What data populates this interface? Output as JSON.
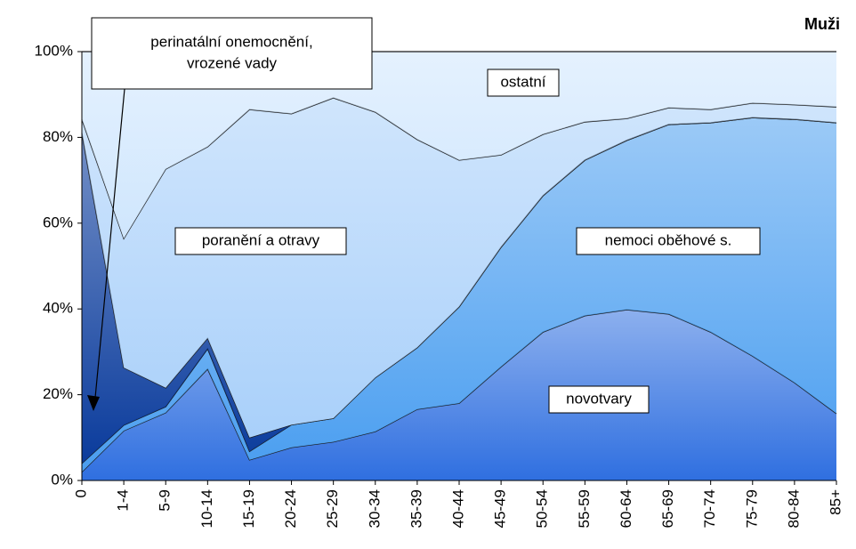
{
  "chart_data": {
    "type": "stacked_area",
    "title": "Muži",
    "categories": [
      "0",
      "1-4",
      "5-9",
      "10-14",
      "15-19",
      "20-24",
      "25-29",
      "30-34",
      "35-39",
      "40-44",
      "45-49",
      "50-54",
      "55-59",
      "60-64",
      "65-69",
      "70-74",
      "75-79",
      "80-84",
      "85+"
    ],
    "series": [
      {
        "name": "novotvary",
        "color": "#2f6fe0",
        "values": [
          2,
          11.6,
          15.8,
          26,
          4.8,
          7.7,
          9,
          11.4,
          16.6,
          18,
          26.5,
          34.6,
          38.4,
          39.8,
          38.8,
          34.6,
          29,
          22.8,
          15.6
        ]
      },
      {
        "name": "nemoci oběhové s.",
        "color": "#4a9ef0",
        "values": [
          2,
          1.3,
          1.4,
          4.7,
          2,
          5.3,
          5.5,
          12.6,
          14.4,
          22.5,
          27.9,
          31.8,
          36.3,
          39.5,
          44.2,
          48.8,
          55.6,
          61.4,
          67.8
        ]
      },
      {
        "name": "perinatální onemocnění, vrozené vady",
        "color": "#0a3b9c",
        "values": [
          77,
          13.4,
          4.4,
          2.5,
          3.2,
          0,
          0,
          0,
          0,
          0,
          0,
          0,
          0,
          0,
          0,
          0,
          0,
          0,
          0
        ]
      },
      {
        "name": "poranění a otravy",
        "color": "#a9d0fa",
        "values": [
          3.2,
          30.1,
          51,
          44.6,
          76.5,
          72.5,
          74.7,
          61.9,
          48.5,
          34.2,
          21.5,
          14.3,
          8.9,
          5.1,
          3.9,
          3.1,
          3.4,
          3.4,
          3.7
        ]
      },
      {
        "name": "ostatní",
        "color": "#cfe6fd",
        "values": [
          15.8,
          43.6,
          27.4,
          22.2,
          13.5,
          14.5,
          10.8,
          14.1,
          20.5,
          25.3,
          24.1,
          19.3,
          16.4,
          15.6,
          13.1,
          13.5,
          12,
          12.4,
          12.9
        ]
      }
    ],
    "annotations": [
      {
        "lines": [
          "perinatální onemocnění,",
          "vrozené vady"
        ]
      },
      {
        "lines": [
          "ostatní"
        ]
      },
      {
        "lines": [
          "poranění a otravy"
        ]
      },
      {
        "lines": [
          "nemoci oběhové s."
        ]
      },
      {
        "lines": [
          "novotvary"
        ]
      }
    ],
    "ylim": [
      0,
      100
    ],
    "yticks": [
      {
        "value": 0,
        "label": "0%"
      },
      {
        "value": 20,
        "label": "20%"
      },
      {
        "value": 40,
        "label": "40%"
      },
      {
        "value": 60,
        "label": "60%"
      },
      {
        "value": 80,
        "label": "80%"
      },
      {
        "value": 100,
        "label": "100%"
      }
    ],
    "grid": false
  }
}
